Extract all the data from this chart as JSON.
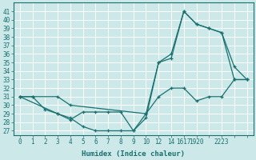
{
  "xlabel": "Humidex (Indice chaleur)",
  "bg_color": "#cce8e8",
  "grid_color": "#ffffff",
  "line_color": "#1a7070",
  "yticks": [
    27,
    28,
    29,
    30,
    31,
    32,
    33,
    34,
    35,
    36,
    37,
    38,
    39,
    40,
    41
  ],
  "ylim": [
    26.5,
    42.0
  ],
  "xtick_positions": [
    0,
    1,
    2,
    3,
    4,
    5,
    6,
    7,
    8,
    9,
    10,
    11,
    12,
    13,
    14,
    15,
    16,
    17,
    18
  ],
  "xtick_labels": [
    "0",
    "1",
    "2",
    "3",
    "4",
    "5",
    "6",
    "7",
    "8",
    "9",
    "10",
    "12",
    "14",
    "1617",
    "1920",
    "",
    "2223",
    "",
    ""
  ],
  "series1_x": [
    0,
    1,
    2,
    3,
    4,
    5,
    6,
    7,
    8,
    9,
    10,
    11,
    12,
    13,
    14,
    15,
    16,
    17,
    18
  ],
  "series1_y": [
    31,
    31,
    29.5,
    29,
    28.5,
    27.5,
    27,
    27,
    27,
    27,
    28.5,
    35,
    35.5,
    41,
    39.5,
    39,
    38.5,
    33,
    33
  ],
  "series2_x": [
    0,
    1,
    3,
    4,
    10,
    11,
    12,
    13,
    14,
    15,
    16,
    17,
    18
  ],
  "series2_y": [
    31,
    31,
    31,
    30,
    29,
    35,
    36,
    41,
    39.5,
    39,
    38.5,
    34.5,
    33
  ],
  "series3_x": [
    0,
    3,
    4,
    5,
    6,
    7,
    8,
    9,
    10,
    11,
    12,
    13,
    14,
    15,
    16,
    17,
    18
  ],
  "series3_y": [
    31,
    29,
    28.3,
    29.2,
    29.2,
    29.2,
    29.2,
    27,
    29,
    31,
    32,
    32,
    30.5,
    31,
    31,
    33,
    33
  ],
  "xlim": [
    -0.5,
    18.5
  ]
}
